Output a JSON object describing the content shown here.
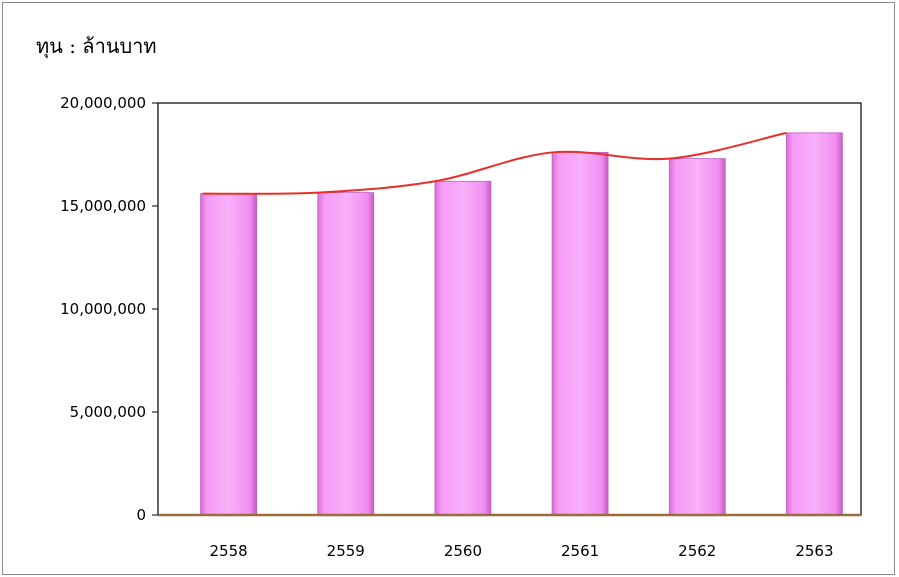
{
  "chart_data": {
    "type": "bar",
    "title": "",
    "unit_label": "ทุน : ล้านบาท",
    "categories": [
      "2558",
      "2559",
      "2560",
      "2561",
      "2562",
      "2563"
    ],
    "values": [
      15600000,
      15650000,
      16200000,
      17600000,
      17300000,
      18550000
    ],
    "trendline": true,
    "ylim": [
      0,
      20000000
    ],
    "yticks": [
      "0",
      "5,000,000",
      "10,000,000",
      "15,000,000",
      "20,000,000"
    ],
    "yticks_values": [
      0,
      5000000,
      10000000,
      15000000,
      20000000
    ],
    "grid": false,
    "colors": {
      "bar": "#f28ef2",
      "bar_edge": "#c05cc0",
      "trend": "#e8302a",
      "baseline": "#9c6b3c"
    }
  }
}
